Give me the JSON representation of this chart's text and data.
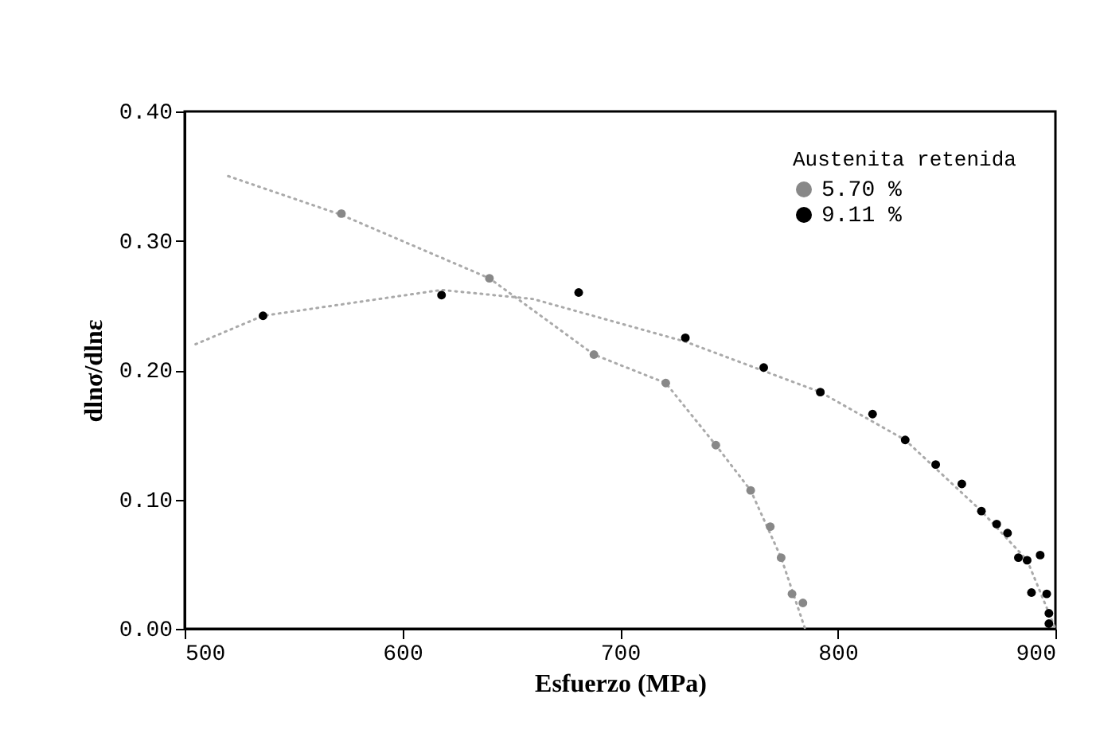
{
  "chart_data": {
    "type": "scatter",
    "xlabel": "Esfuerzo  (MPa)",
    "ylabel": "dlnσ/dlnε",
    "legend_title": "Austenita retenida",
    "xlim": [
      500,
      900
    ],
    "ylim": [
      0,
      0.4
    ],
    "xticks": [
      500,
      600,
      700,
      800,
      900
    ],
    "yticks": [
      {
        "value": 0,
        "label": "0.00"
      },
      {
        "value": 0.1,
        "label": "0.10"
      },
      {
        "value": 0.2,
        "label": "0.20"
      },
      {
        "value": 0.3,
        "label": "0.30"
      },
      {
        "value": 0.4,
        "label": "0.40"
      }
    ],
    "grid": false,
    "legend": "top right",
    "marker": "circle",
    "series": [
      {
        "type": "line",
        "marker": "none",
        "line_style": "dotted",
        "color": "#aaaaaa",
        "x": [
          520,
          572,
          640,
          688,
          721,
          744,
          760,
          774,
          785
        ],
        "values": [
          0.35,
          0.32,
          0.271,
          0.212,
          0.19,
          0.142,
          0.107,
          0.055,
          0
        ]
      },
      {
        "type": "line",
        "marker": "none",
        "line_style": "dotted",
        "color": "#aaaaaa",
        "x": [
          505,
          536,
          618,
          660,
          730,
          792,
          831,
          866,
          887,
          900
        ],
        "values": [
          0.22,
          0.242,
          0.262,
          0.255,
          0.222,
          0.183,
          0.146,
          0.091,
          0.053,
          0
        ]
      },
      {
        "name": "5.70 %",
        "color": "#888888",
        "x": [
          572,
          640,
          688,
          721,
          744,
          760,
          769,
          774,
          779,
          784
        ],
        "values": [
          0.321,
          0.271,
          0.212,
          0.19,
          0.142,
          0.107,
          0.079,
          0.055,
          0.027,
          0.02
        ]
      },
      {
        "name": "9.11 %",
        "color": "#000000",
        "x": [
          536,
          618,
          681,
          730,
          766,
          792,
          816,
          831,
          845,
          857,
          866,
          873,
          878,
          883,
          887,
          893,
          889,
          896,
          897,
          897
        ],
        "values": [
          0.242,
          0.258,
          0.26,
          0.225,
          0.202,
          0.183,
          0.166,
          0.146,
          0.127,
          0.112,
          0.091,
          0.081,
          0.074,
          0.055,
          0.053,
          0.057,
          0.028,
          0.027,
          0.012,
          0.004
        ]
      }
    ]
  }
}
